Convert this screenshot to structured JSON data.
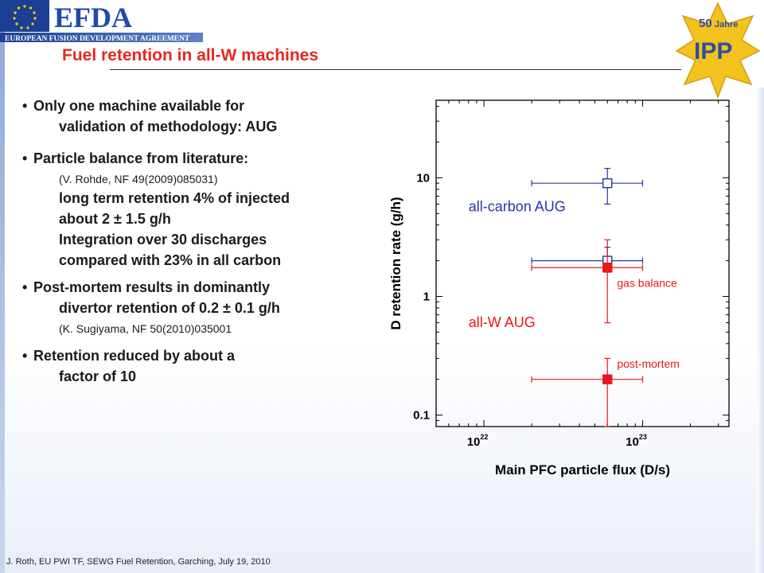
{
  "header": {
    "efda_logo_text": "EFDA",
    "efda_subtitle": "EUROPEAN FUSION DEVELOPMENT AGREEMENT",
    "ipp_logo_years": "50",
    "ipp_logo_word": "Jahre",
    "ipp_logo_text": "IPP"
  },
  "slide": {
    "title": "Fuel retention in all-W machines",
    "bullets": [
      {
        "line1": "Only one machine available for",
        "line2": "validation of methodology: AUG"
      },
      {
        "line1": "Particle balance from literature:",
        "ref": "(V. Rohde, NF 49(2009)085031)",
        "lines": [
          "long term retention 4% of injected",
          "about 2 ± 1.5 g/h",
          "Integration over 30 discharges",
          "compared with 23% in all carbon"
        ]
      },
      {
        "line1": "Post-mortem results in dominantly",
        "line2": "divertor retention of 0.2 ± 0.1 g/h",
        "ref": "(K. Sugiyama, NF 50(2010)035001"
      },
      {
        "line1": "Retention reduced by about a",
        "line2": "factor of 10"
      }
    ],
    "bullet_symbol": "•"
  },
  "footer": {
    "text": "J. Roth, EU PWI TF, SEWG Fuel Retention, Garching, July 19, 2010"
  },
  "chart_data": {
    "type": "scatter",
    "xlabel": "Main PFC particle flux (D/s)",
    "ylabel": "D retention rate (g/h)",
    "xscale": "log",
    "yscale": "log",
    "xlim": [
      5e+21,
      3.5e+23
    ],
    "ylim": [
      0.08,
      45
    ],
    "x_ticks": [
      {
        "value": 1e+22,
        "base": "10",
        "exp": "22"
      },
      {
        "value": 1e+23,
        "base": "10",
        "exp": "23"
      }
    ],
    "y_ticks": [
      {
        "value": 0.1,
        "label": "0.1"
      },
      {
        "value": 1,
        "label": "1"
      },
      {
        "value": 10,
        "label": "10"
      }
    ],
    "series": [
      {
        "color": "#2b34a8",
        "marker": "open-square",
        "points": [
          {
            "x": 6e+22,
            "y": 9.0,
            "xerr": [
              2e+22,
              1e+23
            ],
            "yerr": [
              6.0,
              12.0
            ]
          },
          {
            "x": 6e+22,
            "y": 2.0,
            "xerr": [
              2e+22,
              1e+23
            ],
            "yerr": [
              1.6,
              2.6
            ]
          }
        ]
      },
      {
        "color": "#e8171b",
        "marker": "filled-square",
        "points": [
          {
            "x": 6e+22,
            "y": 1.75,
            "xerr": [
              2e+22,
              1e+23
            ],
            "yerr": [
              0.6,
              3.0
            ]
          },
          {
            "x": 6e+22,
            "y": 0.2,
            "xerr": [
              2e+22,
              1e+23
            ],
            "yerr": [
              0.08,
              0.3
            ]
          }
        ]
      }
    ],
    "annotations": [
      {
        "text": "all-carbon AUG",
        "color": "#2b34a8",
        "x": 8e+21,
        "y": 5.2
      },
      {
        "text": "all-W AUG",
        "color": "#e8171b",
        "x": 8e+21,
        "y": 0.55
      },
      {
        "text": "gas balance",
        "color": "#e8171b",
        "x": 6.9e+22,
        "y": 1.2
      },
      {
        "text": "post-mortem",
        "color": "#e8171b",
        "x": 6.9e+22,
        "y": 0.25
      }
    ]
  },
  "colors": {
    "title": "#e8271f",
    "carbon_series": "#2b34a8",
    "tungsten_series": "#e8171b",
    "efda_blue": "#1f4aa8"
  }
}
